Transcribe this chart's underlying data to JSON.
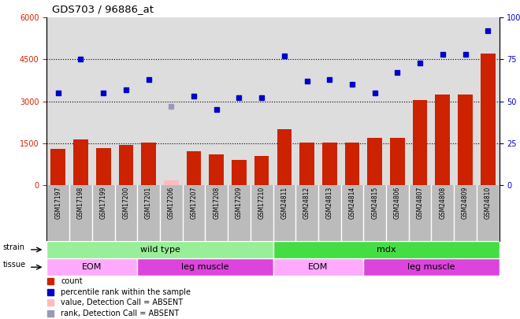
{
  "title": "GDS703 / 96886_at",
  "samples": [
    "GSM17197",
    "GSM17198",
    "GSM17199",
    "GSM17200",
    "GSM17201",
    "GSM17206",
    "GSM17207",
    "GSM17208",
    "GSM17209",
    "GSM17210",
    "GSM24811",
    "GSM24812",
    "GSM24813",
    "GSM24814",
    "GSM24815",
    "GSM24806",
    "GSM24807",
    "GSM24808",
    "GSM24809",
    "GSM24810"
  ],
  "bar_values": [
    1300,
    1620,
    1310,
    1430,
    1520,
    180,
    1200,
    1100,
    900,
    1050,
    2000,
    1520,
    1520,
    1520,
    1700,
    1700,
    3050,
    3250,
    3250,
    4700
  ],
  "bar_absent": [
    false,
    false,
    false,
    false,
    false,
    true,
    false,
    false,
    false,
    false,
    false,
    false,
    false,
    false,
    false,
    false,
    false,
    false,
    false,
    false
  ],
  "dot_values": [
    55,
    75,
    55,
    57,
    63,
    47,
    53,
    45,
    52,
    52,
    77,
    62,
    63,
    60,
    55,
    67,
    73,
    78,
    78,
    92
  ],
  "rank_absent_idx": 5,
  "ylim_left": [
    0,
    6000
  ],
  "ylim_right": [
    0,
    100
  ],
  "yticks_left": [
    0,
    1500,
    3000,
    4500,
    6000
  ],
  "yticks_right": [
    0,
    25,
    50,
    75,
    100
  ],
  "grid_values": [
    1500,
    3000,
    4500
  ],
  "bar_color": "#cc2200",
  "bar_absent_color": "#ffbbbb",
  "dot_color": "#0000cc",
  "dot_absent_color": "#9999bb",
  "strain_groups": [
    {
      "label": "wild type",
      "start": 0,
      "end": 9,
      "color": "#99ee99"
    },
    {
      "label": "mdx",
      "start": 10,
      "end": 19,
      "color": "#44dd44"
    }
  ],
  "tissue_groups": [
    {
      "label": "EOM",
      "start": 0,
      "end": 3,
      "color": "#ffaaff"
    },
    {
      "label": "leg muscle",
      "start": 4,
      "end": 9,
      "color": "#dd44dd"
    },
    {
      "label": "EOM",
      "start": 10,
      "end": 13,
      "color": "#ffaaff"
    },
    {
      "label": "leg muscle",
      "start": 14,
      "end": 19,
      "color": "#dd44dd"
    }
  ],
  "legend_items": [
    {
      "label": "count",
      "color": "#cc2200"
    },
    {
      "label": "percentile rank within the sample",
      "color": "#0000cc"
    },
    {
      "label": "value, Detection Call = ABSENT",
      "color": "#ffbbbb"
    },
    {
      "label": "rank, Detection Call = ABSENT",
      "color": "#9999bb"
    }
  ],
  "xlabels_bg": "#bbbbbb",
  "plot_bg": "#dddddd"
}
